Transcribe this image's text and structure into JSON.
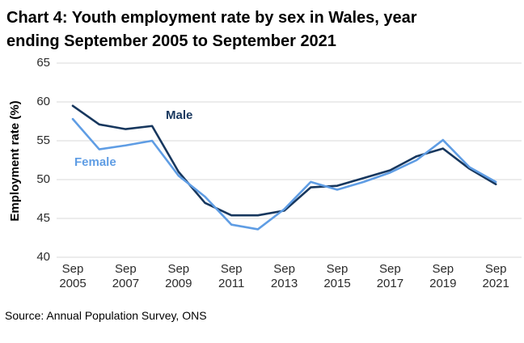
{
  "header": {
    "title_line1": "Chart 4: Youth employment rate by sex in Wales, year",
    "title_line2": "ending September 2005 to September 2021"
  },
  "footer": {
    "source": "Source: Annual Population Survey, ONS"
  },
  "chart_data": {
    "type": "line",
    "title": "Chart 4: Youth employment rate by sex in Wales, year ending September 2005 to September 2021",
    "xlabel": "",
    "ylabel": "Employment rate (%)",
    "ylim": [
      40,
      65
    ],
    "yticks": [
      40,
      45,
      50,
      55,
      60,
      65
    ],
    "x": [
      2005,
      2006,
      2007,
      2008,
      2009,
      2010,
      2011,
      2012,
      2013,
      2014,
      2015,
      2016,
      2017,
      2018,
      2019,
      2020,
      2021
    ],
    "x_tick_labels": [
      "Sep 2005",
      "Sep 2007",
      "Sep 2009",
      "Sep 2011",
      "Sep 2013",
      "Sep 2015",
      "Sep 2017",
      "Sep 2019",
      "Sep 2021"
    ],
    "grid": "horizontal",
    "legend": "inline-labels",
    "series": [
      {
        "name": "Male",
        "color": "#17375e",
        "values": [
          59.5,
          57.1,
          56.5,
          56.9,
          51.0,
          47.0,
          45.4,
          45.4,
          46.0,
          49.0,
          49.2,
          50.2,
          51.2,
          53.0,
          54.0,
          51.4,
          49.4
        ]
      },
      {
        "name": "Female",
        "color": "#5f9de4",
        "values": [
          57.8,
          53.9,
          54.4,
          55.0,
          50.5,
          47.8,
          44.2,
          43.6,
          46.2,
          49.7,
          48.7,
          49.7,
          50.9,
          52.5,
          55.1,
          51.6,
          49.7
        ]
      }
    ],
    "colors": {
      "gridline": "#d9d9d9"
    }
  }
}
